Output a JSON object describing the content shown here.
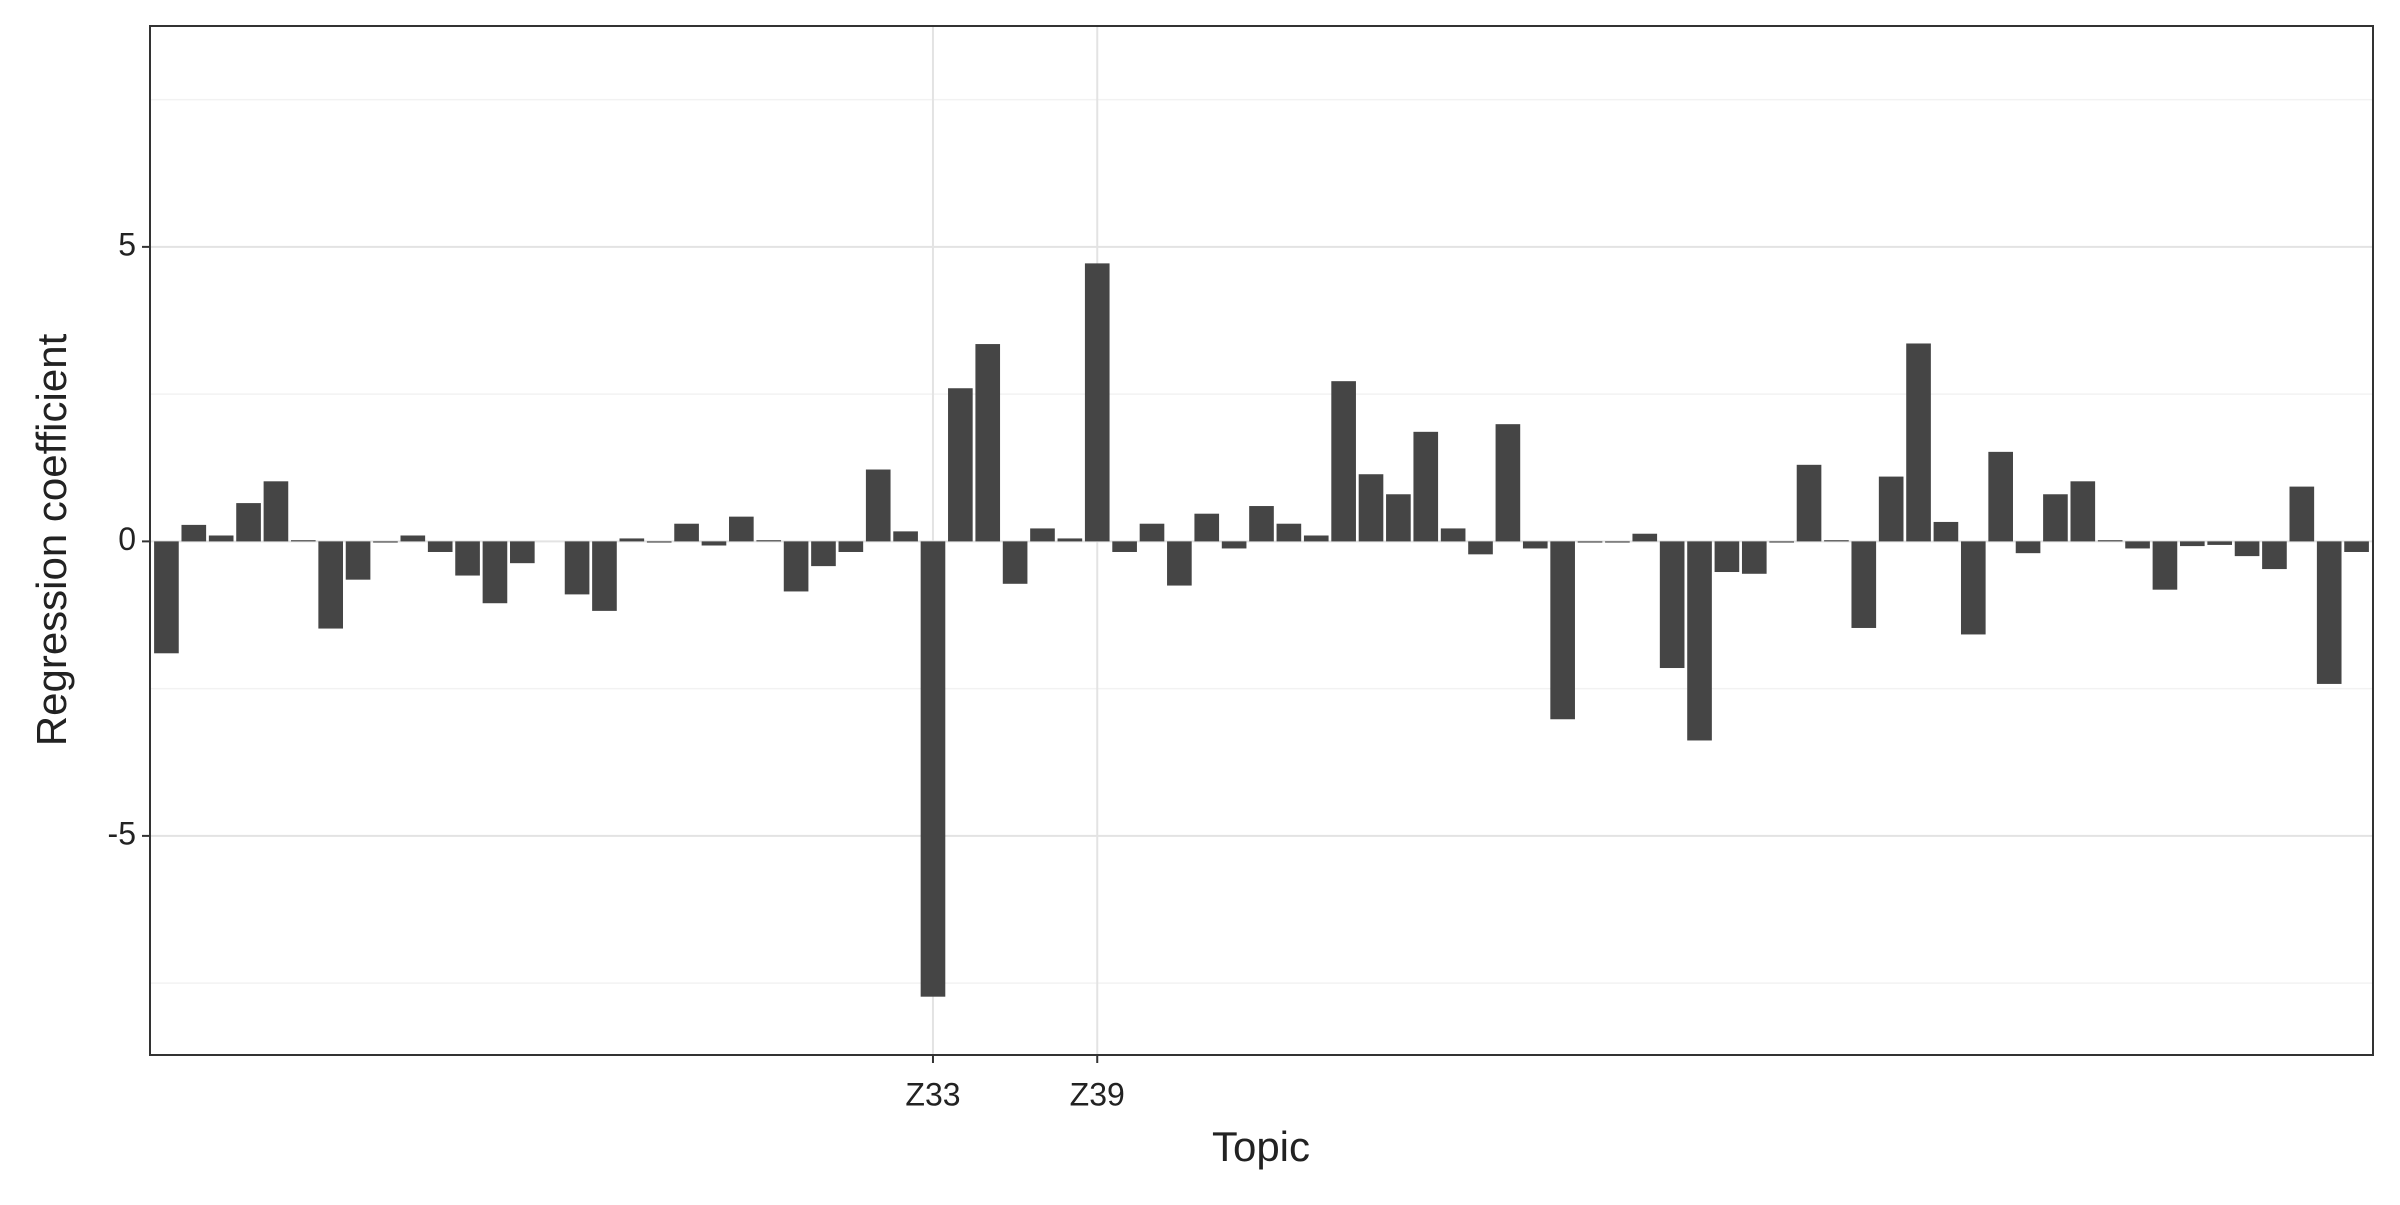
{
  "chart_data": {
    "type": "bar",
    "x_label": "Topic",
    "y_label": "Regression coefficient",
    "color": "#454545",
    "ylim": [
      -8.72,
      8.75
    ],
    "yticks": [
      -5,
      0,
      5
    ],
    "minor_yticks": [
      -7.5,
      -2.5,
      2.5,
      7.5
    ],
    "grid": true,
    "categories": [
      null,
      null,
      null,
      null,
      null,
      null,
      null,
      null,
      null,
      null,
      null,
      null,
      null,
      null,
      null,
      null,
      null,
      null,
      null,
      null,
      null,
      null,
      null,
      null,
      null,
      null,
      null,
      null,
      "Z33",
      null,
      null,
      null,
      null,
      null,
      "Z39",
      null,
      null,
      null,
      null,
      null,
      null,
      null,
      null,
      null,
      null,
      null,
      null,
      null,
      null,
      null,
      null,
      null,
      null,
      null,
      null,
      null,
      null,
      null,
      null,
      null,
      null,
      null,
      null,
      null,
      null,
      null,
      null,
      null,
      null,
      null,
      null,
      null,
      null,
      null,
      null,
      null,
      null,
      null,
      null,
      null,
      null
    ],
    "values": [
      -1.9,
      0.28,
      0.1,
      0.65,
      1.02,
      0.02,
      -1.48,
      -0.65,
      -0.02,
      0.1,
      -0.18,
      -0.58,
      -1.05,
      -0.37,
      0,
      -0.9,
      -1.18,
      0.05,
      -0.02,
      0.3,
      -0.07,
      0.42,
      0.02,
      -0.85,
      -0.42,
      -0.18,
      1.22,
      0.17,
      -7.73,
      2.6,
      3.35,
      -0.72,
      0.22,
      0.05,
      4.72,
      -0.18,
      0.3,
      -0.75,
      0.47,
      -0.12,
      0.6,
      0.3,
      0.1,
      2.72,
      1.14,
      0.8,
      1.86,
      0.22,
      -0.22,
      1.99,
      -0.12,
      -3.02,
      -0.02,
      -0.02,
      0.13,
      -2.15,
      -3.38,
      -0.52,
      -0.55,
      -0.02,
      1.3,
      0.02,
      -1.47,
      1.1,
      3.36,
      0.33,
      -1.58,
      1.52,
      -0.2,
      0.8,
      1.02,
      0.02,
      -0.12,
      -0.82,
      -0.08,
      -0.06,
      -0.25,
      -0.47,
      0.93,
      -2.42,
      -0.18
    ]
  }
}
